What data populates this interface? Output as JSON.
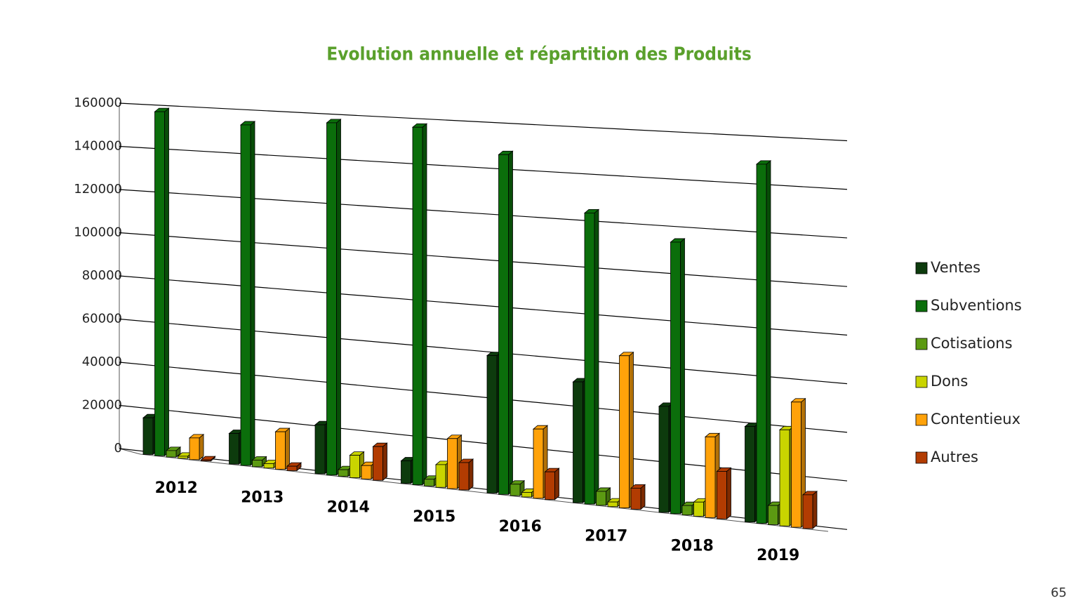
{
  "chart_data": {
    "type": "bar3d",
    "title": "Evolution annuelle et répartition des Produits",
    "categories": [
      "2012",
      "2013",
      "2014",
      "2015",
      "2016",
      "2017",
      "2018",
      "2019"
    ],
    "series": [
      {
        "name": "Ventes",
        "color": "#0d3b0d",
        "values": [
          17000,
          14000,
          22000,
          10000,
          60000,
          52000,
          45000,
          40000
        ]
      },
      {
        "name": "Subventions",
        "color": "#0b6e0b",
        "values": [
          159000,
          155000,
          158000,
          158000,
          148000,
          125000,
          115000,
          150000
        ]
      },
      {
        "name": "Cotisations",
        "color": "#5c9a12",
        "values": [
          3000,
          3000,
          3000,
          3000,
          5000,
          6000,
          4000,
          8000
        ]
      },
      {
        "name": "Dons",
        "color": "#c9d400",
        "values": [
          1000,
          2000,
          10000,
          10000,
          2000,
          2000,
          6000,
          40000
        ]
      },
      {
        "name": "Contentieux",
        "color": "#ffa20a",
        "values": [
          10000,
          17000,
          6000,
          22000,
          30000,
          65000,
          34000,
          52000
        ]
      },
      {
        "name": "Autres",
        "color": "#b23c02",
        "values": [
          500,
          2000,
          15000,
          12000,
          12000,
          9000,
          20000,
          14000
        ]
      }
    ],
    "ylim": [
      0,
      160000
    ],
    "yticks": [
      0,
      20000,
      40000,
      60000,
      80000,
      100000,
      120000,
      140000,
      160000
    ],
    "grid": true,
    "legend": "right"
  },
  "page_number": "65"
}
